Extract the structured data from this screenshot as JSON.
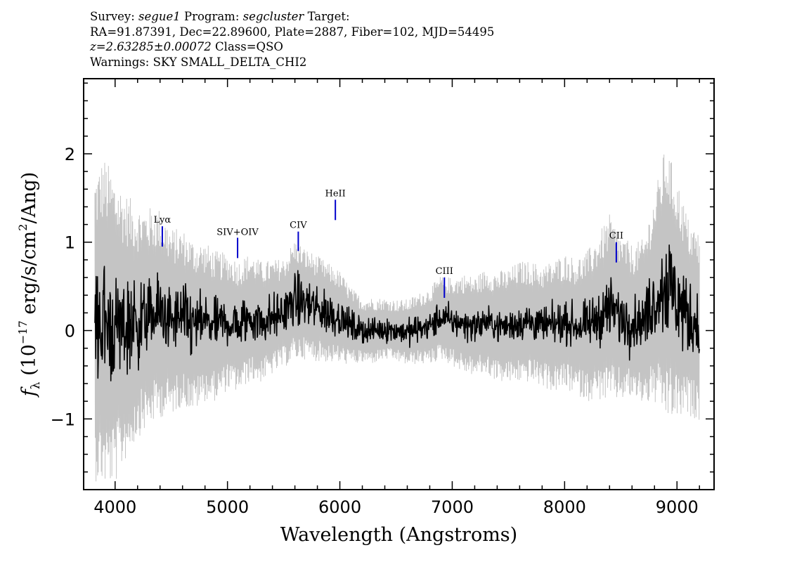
{
  "header": {
    "line1": {
      "survey_label": "Survey: ",
      "survey": "segue1",
      "program_label": " Program: ",
      "program": "segcluster",
      "target_label": " Target:"
    },
    "line2": "RA=91.87391, Dec=22.89600, Plate=2887, Fiber=102, MJD=54495",
    "line3": {
      "redshift": "z=2.63285±0.00072",
      "class": " Class=QSO"
    },
    "line4": "Warnings: SKY SMALL_DELTA_CHI2"
  },
  "chart_data": {
    "type": "line",
    "xlabel": "Wavelength (Angstroms)",
    "ylabel": "f_λ (10^-17 erg/s/cm²/Ang)",
    "ylabel_parts": {
      "f": "f",
      "sub": "λ",
      "pre": " (10",
      "exp": "−17",
      "mid": " erg/s/cm",
      "exp2": "2",
      "post": "/Ang)"
    },
    "xlim": [
      3720,
      9330
    ],
    "ylim": [
      -1.8,
      2.85
    ],
    "x_ticks": [
      {
        "value": 4000,
        "label": "4000"
      },
      {
        "value": 5000,
        "label": "5000"
      },
      {
        "value": 6000,
        "label": "6000"
      },
      {
        "value": 7000,
        "label": "7000"
      },
      {
        "value": 8000,
        "label": "8000"
      },
      {
        "value": 9000,
        "label": "9000"
      }
    ],
    "y_ticks": [
      {
        "value": -1,
        "label": "−1"
      },
      {
        "value": 0,
        "label": "0"
      },
      {
        "value": 1,
        "label": "1"
      },
      {
        "value": 2,
        "label": "2"
      }
    ],
    "series": [
      {
        "role": "flux",
        "color": "#000000",
        "x": [
          3820,
          3900,
          4000,
          4100,
          4200,
          4300,
          4400,
          4500,
          4600,
          4700,
          4800,
          4900,
          5000,
          5100,
          5200,
          5300,
          5400,
          5500,
          5600,
          5700,
          5800,
          5900,
          6000,
          6100,
          6200,
          6300,
          6400,
          6500,
          6600,
          6700,
          6800,
          6900,
          7000,
          7100,
          7200,
          7300,
          7400,
          7500,
          7600,
          7700,
          7800,
          7900,
          8000,
          8100,
          8200,
          8300,
          8400,
          8500,
          8600,
          8700,
          8800,
          8900,
          9000,
          9100,
          9200
        ],
        "y": [
          0.05,
          0.1,
          0.0,
          0.05,
          0.1,
          0.15,
          0.2,
          0.1,
          0.15,
          0.05,
          0.1,
          0.05,
          0.1,
          0.05,
          0.15,
          0.1,
          0.15,
          0.2,
          0.35,
          0.3,
          0.25,
          0.2,
          0.15,
          0.05,
          0.0,
          0.0,
          0.02,
          0.0,
          -0.02,
          0.02,
          0.05,
          0.15,
          0.1,
          0.08,
          0.05,
          0.1,
          0.05,
          0.05,
          0.1,
          0.1,
          0.05,
          0.05,
          0.1,
          0.05,
          0.05,
          0.15,
          0.25,
          0.15,
          0.1,
          0.1,
          0.35,
          0.55,
          0.35,
          0.15,
          0.05
        ],
        "noise": [
          0.45,
          0.5,
          0.45,
          0.4,
          0.35,
          0.3,
          0.3,
          0.25,
          0.25,
          0.25,
          0.2,
          0.2,
          0.2,
          0.2,
          0.2,
          0.18,
          0.18,
          0.18,
          0.2,
          0.2,
          0.18,
          0.18,
          0.15,
          0.12,
          0.1,
          0.1,
          0.1,
          0.1,
          0.1,
          0.12,
          0.12,
          0.12,
          0.12,
          0.12,
          0.12,
          0.12,
          0.12,
          0.12,
          0.15,
          0.15,
          0.15,
          0.15,
          0.15,
          0.15,
          0.18,
          0.2,
          0.25,
          0.25,
          0.2,
          0.2,
          0.3,
          0.45,
          0.4,
          0.3,
          0.25
        ]
      },
      {
        "role": "error",
        "color": "#c4c4c4",
        "x": [
          3820,
          3900,
          4000,
          4100,
          4200,
          4300,
          4400,
          4500,
          4600,
          4700,
          4800,
          4900,
          5000,
          5100,
          5200,
          5300,
          5400,
          5500,
          5600,
          5700,
          5800,
          5900,
          6000,
          6100,
          6200,
          6300,
          6400,
          6500,
          6600,
          6700,
          6800,
          6900,
          7000,
          7100,
          7200,
          7300,
          7400,
          7500,
          7600,
          7700,
          7800,
          7900,
          8000,
          8100,
          8200,
          8300,
          8400,
          8500,
          8600,
          8700,
          8800,
          8900,
          9000,
          9100,
          9200
        ],
        "y": [
          1.4,
          1.5,
          1.4,
          1.2,
          1.05,
          1.0,
          0.95,
          0.85,
          0.8,
          0.78,
          0.72,
          0.68,
          0.62,
          0.6,
          0.58,
          0.55,
          0.52,
          0.5,
          0.55,
          0.5,
          0.48,
          0.45,
          0.42,
          0.35,
          0.3,
          0.3,
          0.28,
          0.28,
          0.3,
          0.32,
          0.35,
          0.38,
          0.4,
          0.45,
          0.45,
          0.48,
          0.5,
          0.52,
          0.55,
          0.55,
          0.55,
          0.6,
          0.62,
          0.62,
          0.68,
          0.75,
          0.85,
          0.75,
          0.7,
          0.75,
          0.95,
          1.25,
          1.1,
          0.9,
          0.85
        ]
      }
    ],
    "line_markers": [
      {
        "label": "Lyα",
        "x": 4420,
        "y_top": 1.18,
        "y_bottom": 0.95,
        "label_y": 1.22
      },
      {
        "label": "SIV+OIV",
        "x": 5090,
        "y_top": 1.05,
        "y_bottom": 0.82,
        "label_y": 1.08
      },
      {
        "label": "CIV",
        "x": 5630,
        "y_top": 1.12,
        "y_bottom": 0.9,
        "label_y": 1.16
      },
      {
        "label": "HeII",
        "x": 5960,
        "y_top": 1.48,
        "y_bottom": 1.25,
        "label_y": 1.52
      },
      {
        "label": "CIII",
        "x": 6930,
        "y_top": 0.6,
        "y_bottom": 0.37,
        "label_y": 0.64
      },
      {
        "label": "CII",
        "x": 8460,
        "y_top": 1.0,
        "y_bottom": 0.77,
        "label_y": 1.04
      }
    ],
    "marker_color": "#0000cc",
    "grid": false
  }
}
